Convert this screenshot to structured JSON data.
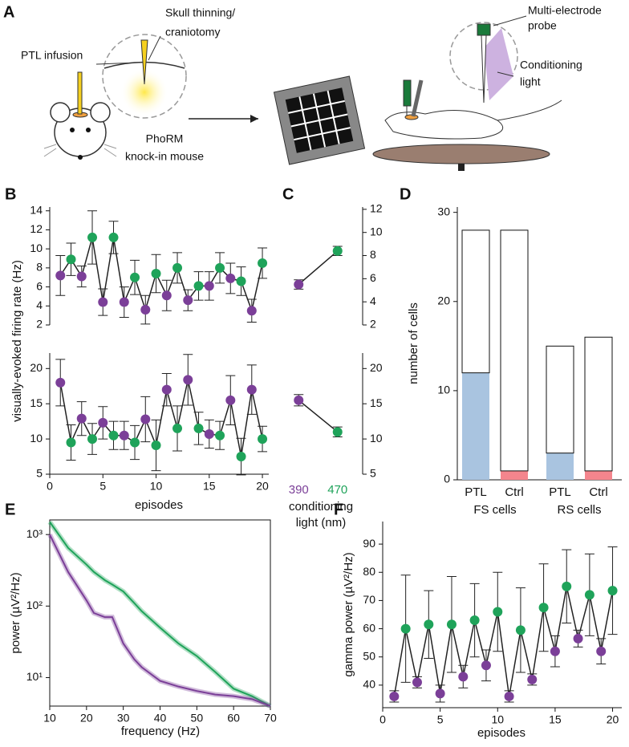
{
  "panel_a": {
    "label": "A",
    "ptl_label": "PTL infusion",
    "skull_label": [
      "Skull thinning/",
      "craniotomy"
    ],
    "mouse_label": [
      "PhoRM",
      "knock-in mouse"
    ],
    "probe_label": [
      "Multi-electrode",
      "probe"
    ],
    "light_label": [
      "Conditioning",
      "light"
    ]
  },
  "chart_data": [
    {
      "type": "errorbar",
      "panel": "B",
      "y_label": "visually-evoked firing rate (Hz)",
      "x": [
        1,
        2,
        3,
        4,
        5,
        6,
        7,
        8,
        9,
        10,
        11,
        12,
        13,
        14,
        15,
        16,
        17,
        18,
        19,
        20
      ],
      "values": [
        7.2,
        8.9,
        7.1,
        11.2,
        4.4,
        11.2,
        4.4,
        7.0,
        3.6,
        7.4,
        5.1,
        8.0,
        4.6,
        6.1,
        6.1,
        8.0,
        6.9,
        6.6,
        3.5,
        8.5
      ],
      "errors": [
        2.1,
        1.7,
        1.1,
        2.8,
        1.4,
        1.7,
        1.6,
        1.8,
        1.5,
        2.0,
        1.6,
        1.6,
        1.1,
        1.5,
        1.5,
        1.6,
        1.6,
        1.5,
        1.2,
        1.6
      ],
      "colors": [
        "#7b3f98",
        "#1fa35a",
        "#7b3f98",
        "#1fa35a",
        "#7b3f98",
        "#1fa35a",
        "#7b3f98",
        "#1fa35a",
        "#7b3f98",
        "#1fa35a",
        "#7b3f98",
        "#1fa35a",
        "#7b3f98",
        "#1fa35a",
        "#7b3f98",
        "#1fa35a",
        "#7b3f98",
        "#1fa35a",
        "#7b3f98",
        "#1fa35a"
      ],
      "xlim": [
        0,
        20.6
      ],
      "ylim": [
        2,
        14.4
      ],
      "yticks": [
        2,
        4,
        6,
        8,
        10,
        12,
        14
      ]
    },
    {
      "type": "errorbar",
      "x_label": "episodes",
      "x": [
        1,
        2,
        3,
        4,
        5,
        6,
        7,
        8,
        9,
        10,
        11,
        12,
        13,
        14,
        15,
        16,
        17,
        18,
        19,
        20
      ],
      "values": [
        18,
        9.5,
        12.9,
        10,
        12.3,
        10.5,
        10.5,
        9.5,
        12.8,
        9.1,
        17,
        11.5,
        18.4,
        11.5,
        10.7,
        10.5,
        15.5,
        7.5,
        17,
        10
      ],
      "errors": [
        3.3,
        2.5,
        2.4,
        2.2,
        2.3,
        2,
        2,
        2.4,
        3.2,
        3.6,
        2.3,
        3.2,
        3.6,
        2.3,
        2,
        2,
        3.5,
        2.6,
        3.5,
        1.8
      ],
      "colors": [
        "#7b3f98",
        "#1fa35a",
        "#7b3f98",
        "#1fa35a",
        "#7b3f98",
        "#1fa35a",
        "#7b3f98",
        "#1fa35a",
        "#7b3f98",
        "#1fa35a",
        "#7b3f98",
        "#1fa35a",
        "#7b3f98",
        "#1fa35a",
        "#7b3f98",
        "#1fa35a",
        "#7b3f98",
        "#1fa35a",
        "#7b3f98",
        "#1fa35a"
      ],
      "xlim": [
        0,
        20.6
      ],
      "ylim": [
        5,
        22.2
      ],
      "yticks": [
        5,
        10,
        15,
        20
      ],
      "xticks": [
        0,
        5,
        10,
        15,
        20
      ]
    },
    {
      "type": "pair",
      "panel": "C",
      "values": [
        5.5,
        8.4
      ],
      "errors": [
        0.4,
        0.4
      ],
      "colors": [
        "#7b3f98",
        "#1fa35a"
      ],
      "ylim": [
        2,
        12.2
      ],
      "yticks": [
        2,
        4,
        6,
        8,
        10,
        12
      ]
    },
    {
      "type": "pair",
      "categories": [
        "390",
        "470"
      ],
      "x_label": [
        "conditioning",
        "light (nm)"
      ],
      "values": [
        15.5,
        11
      ],
      "errors": [
        0.8,
        0.7
      ],
      "colors": [
        "#7b3f98",
        "#1fa35a"
      ],
      "ylim": [
        5,
        22.2
      ],
      "yticks": [
        5,
        10,
        15,
        20
      ]
    },
    {
      "type": "stacked_bar",
      "panel": "D",
      "y_label": "number of cells",
      "categories": [
        "PTL",
        "Ctrl",
        "PTL",
        "Ctrl"
      ],
      "groups": [
        "FS cells",
        "RS cells"
      ],
      "series": [
        {
          "colors": [
            "#a9c4e0",
            "#f4858d",
            "#a9c4e0",
            "#f4858d"
          ],
          "values": [
            12,
            1,
            3,
            1
          ]
        },
        {
          "color": "#ffffff",
          "values": [
            16,
            27,
            12,
            15
          ]
        }
      ],
      "ylim": [
        0,
        30.6
      ],
      "yticks": [
        0,
        10,
        20,
        30
      ]
    },
    {
      "type": "line",
      "panel": "E",
      "y_label": "power (µV²/Hz)",
      "x_label": "frequency (Hz)",
      "log_y": true,
      "x": [
        10,
        15,
        20,
        22,
        25,
        27,
        30,
        33,
        35,
        40,
        45,
        50,
        55,
        60,
        65,
        70
      ],
      "series": [
        {
          "color": "#1fa35a",
          "values": [
            1500,
            650,
            380,
            300,
            230,
            200,
            160,
            110,
            85,
            50,
            30,
            20,
            12,
            7,
            5.5,
            4
          ]
        },
        {
          "color": "#7b3f98",
          "values": [
            1000,
            300,
            120,
            80,
            70,
            70,
            30,
            18,
            14,
            9,
            7.5,
            6.5,
            5.8,
            5.5,
            5,
            4
          ]
        }
      ],
      "xlim": [
        10,
        70
      ],
      "ylim": [
        4,
        1600
      ],
      "xticks": [
        10,
        20,
        30,
        40,
        50,
        60,
        70
      ],
      "yticks": [
        {
          "value": 10,
          "label": "10¹"
        },
        {
          "value": 100,
          "label": "10²"
        },
        {
          "value": 1000,
          "label": "10³"
        }
      ]
    },
    {
      "type": "errorbar",
      "panel": "F",
      "y_label": "gamma power (µV²/Hz)",
      "x_label": "episodes",
      "x": [
        1,
        2,
        3,
        4,
        5,
        6,
        7,
        8,
        9,
        10,
        11,
        12,
        13,
        14,
        15,
        16,
        17,
        18,
        19,
        20
      ],
      "values": [
        36,
        60,
        41,
        61.5,
        37,
        61.5,
        43,
        63,
        47,
        66,
        36,
        59.5,
        42,
        67.5,
        52,
        75,
        56.5,
        72,
        52,
        73.5
      ],
      "errors": [
        2,
        19,
        2,
        12,
        3,
        17,
        4,
        13,
        5.5,
        14,
        2,
        15,
        2,
        15.5,
        5.5,
        13,
        3,
        14.5,
        4.5,
        15.5
      ],
      "colors": [
        "#7b3f98",
        "#1fa35a",
        "#7b3f98",
        "#1fa35a",
        "#7b3f98",
        "#1fa35a",
        "#7b3f98",
        "#1fa35a",
        "#7b3f98",
        "#1fa35a",
        "#7b3f98",
        "#1fa35a",
        "#7b3f98",
        "#1fa35a",
        "#7b3f98",
        "#1fa35a",
        "#7b3f98",
        "#1fa35a",
        "#7b3f98",
        "#1fa35a"
      ],
      "xlim": [
        0,
        20.8
      ],
      "ylim": [
        32,
        98
      ],
      "xticks": [
        0,
        5,
        10,
        15,
        20
      ],
      "yticks": [
        40,
        50,
        60,
        70,
        80,
        90
      ]
    }
  ]
}
